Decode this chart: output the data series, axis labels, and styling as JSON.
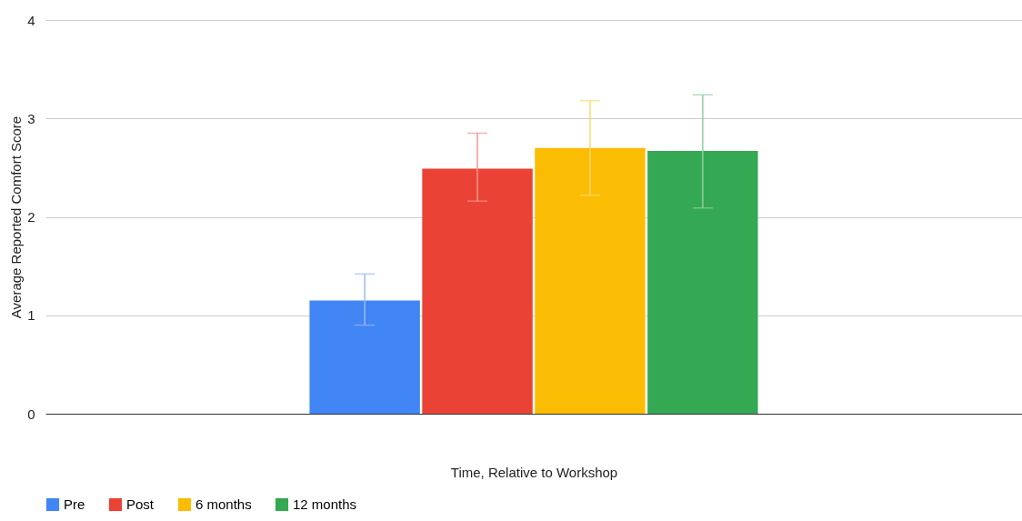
{
  "chart_data": {
    "type": "bar",
    "xlabel": "Time, Relative to Workshop",
    "ylabel": "Average Reported Comfort Score",
    "categories": [
      null
    ],
    "series": [
      {
        "name": "Pre",
        "color": "#4285f4",
        "values": [
          1.15
        ],
        "errors": [
          [
            0.9,
            1.42
          ]
        ]
      },
      {
        "name": "Post",
        "color": "#ea4335",
        "values": [
          2.49
        ],
        "errors": [
          [
            2.16,
            2.85
          ]
        ]
      },
      {
        "name": "6 months",
        "color": "#fbbc04",
        "values": [
          2.7
        ],
        "errors": [
          [
            2.22,
            3.18
          ]
        ]
      },
      {
        "name": "12 months",
        "color": "#34a853",
        "values": [
          2.67
        ],
        "errors": [
          [
            2.09,
            3.24
          ]
        ]
      }
    ],
    "ylim": [
      0,
      4
    ],
    "yticks": [
      0,
      1,
      2,
      3,
      4
    ],
    "grid": "y",
    "legend": "bottom"
  }
}
